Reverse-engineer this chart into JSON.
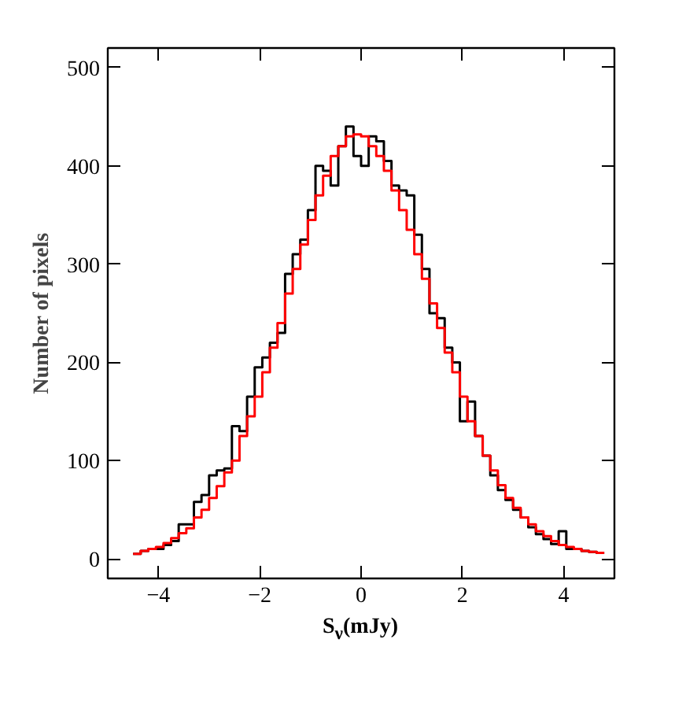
{
  "chart_data": {
    "type": "histogram",
    "xlabel": "S$_{ν}$(mJy)",
    "ylabel": "Number of pixels",
    "bins": [
      -4.5,
      -4.35,
      -4.2,
      -4.05,
      -3.9,
      -3.75,
      -3.6,
      -3.45,
      -3.3,
      -3.15,
      -3.0,
      -2.85,
      -2.7,
      -2.55,
      -2.4,
      -2.25,
      -2.1,
      -1.95,
      -1.8,
      -1.65,
      -1.5,
      -1.35,
      -1.2,
      -1.05,
      -0.9,
      -0.75,
      -0.6,
      -0.45,
      -0.3,
      -0.15,
      0.0,
      0.15,
      0.3,
      0.45,
      0.6,
      0.75,
      0.9,
      1.05,
      1.2,
      1.35,
      1.5,
      1.65,
      1.8,
      1.95,
      2.1,
      2.25,
      2.4,
      2.55,
      2.7,
      2.85,
      3.0,
      3.15,
      3.3,
      3.45,
      3.6,
      3.75,
      3.9,
      4.05,
      4.2,
      4.35,
      4.5,
      4.65,
      4.8
    ],
    "series": [
      {
        "color": "#000000",
        "values": [
          5,
          8,
          10,
          10,
          14,
          18,
          35,
          35,
          58,
          65,
          85,
          90,
          92,
          135,
          130,
          165,
          195,
          205,
          220,
          230,
          290,
          310,
          325,
          355,
          400,
          395,
          380,
          420,
          440,
          410,
          400,
          430,
          425,
          405,
          380,
          375,
          370,
          330,
          295,
          250,
          245,
          215,
          200,
          140,
          160,
          125,
          105,
          85,
          70,
          60,
          50,
          42,
          32,
          25,
          20,
          15,
          28,
          10,
          10,
          8,
          7,
          6
        ]
      },
      {
        "color": "#ff0000",
        "values": [
          5,
          8,
          10,
          12,
          16,
          21,
          26,
          31,
          42,
          50,
          62,
          74,
          88,
          100,
          125,
          145,
          165,
          190,
          215,
          240,
          270,
          295,
          320,
          345,
          370,
          390,
          410,
          420,
          430,
          432,
          430,
          420,
          410,
          395,
          375,
          355,
          335,
          310,
          285,
          260,
          235,
          210,
          190,
          165,
          140,
          125,
          105,
          90,
          75,
          62,
          52,
          42,
          35,
          28,
          23,
          18,
          14,
          12,
          10,
          8,
          7,
          6
        ]
      }
    ],
    "xlim": [
      -5,
      5
    ],
    "ylim": [
      -20,
      520
    ],
    "xticks": [
      -4,
      -2,
      0,
      2,
      4
    ],
    "yticks": [
      0,
      100,
      200,
      300,
      400,
      500
    ],
    "grid": false
  }
}
